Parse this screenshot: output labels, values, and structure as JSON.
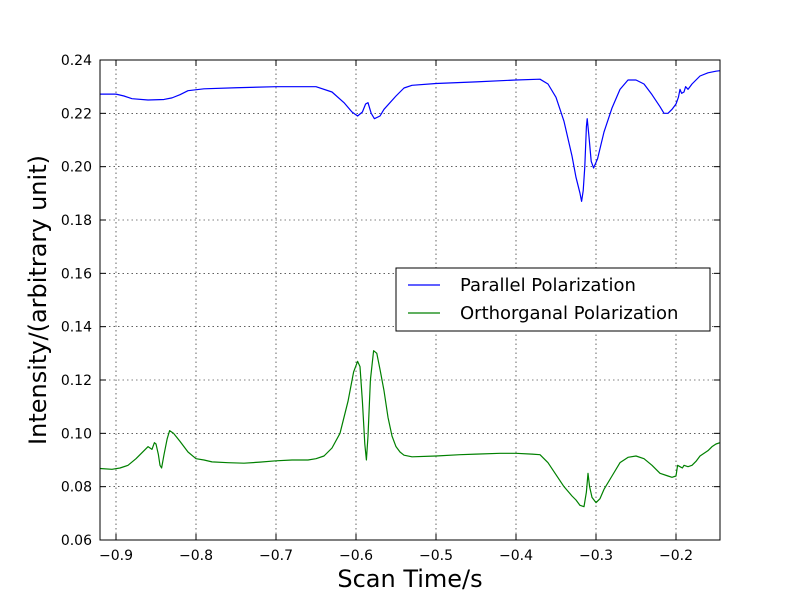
{
  "chart_data": {
    "type": "line",
    "title": "",
    "xlabel": "Scan Time/s",
    "ylabel": "Intensity/(arbitrary unit)",
    "xlim": [
      -0.92,
      -0.145
    ],
    "ylim": [
      0.06,
      0.24
    ],
    "xticks": [
      -0.9,
      -0.8,
      -0.7,
      -0.6,
      -0.5,
      -0.4,
      -0.3,
      -0.2
    ],
    "xtick_labels": [
      "−0.9",
      "−0.8",
      "−0.7",
      "−0.6",
      "−0.5",
      "−0.4",
      "−0.3",
      "−0.2"
    ],
    "yticks": [
      0.06,
      0.08,
      0.1,
      0.12,
      0.14,
      0.16,
      0.18,
      0.2,
      0.22,
      0.24
    ],
    "ytick_labels": [
      "0.06",
      "0.08",
      "0.10",
      "0.12",
      "0.14",
      "0.16",
      "0.18",
      "0.20",
      "0.22",
      "0.24"
    ],
    "grid": true,
    "legend_position": "center-right",
    "series": [
      {
        "name": "Parallel Polarization",
        "color": "#0000ff",
        "points": [
          [
            -0.92,
            0.2272
          ],
          [
            -0.9,
            0.2272
          ],
          [
            -0.89,
            0.2265
          ],
          [
            -0.88,
            0.2255
          ],
          [
            -0.86,
            0.225
          ],
          [
            -0.84,
            0.2252
          ],
          [
            -0.83,
            0.2258
          ],
          [
            -0.82,
            0.227
          ],
          [
            -0.81,
            0.2285
          ],
          [
            -0.79,
            0.2292
          ],
          [
            -0.75,
            0.2296
          ],
          [
            -0.7,
            0.23
          ],
          [
            -0.65,
            0.23
          ],
          [
            -0.63,
            0.228
          ],
          [
            -0.615,
            0.224
          ],
          [
            -0.605,
            0.2205
          ],
          [
            -0.598,
            0.219
          ],
          [
            -0.592,
            0.2205
          ],
          [
            -0.588,
            0.2235
          ],
          [
            -0.585,
            0.224
          ],
          [
            -0.581,
            0.22
          ],
          [
            -0.577,
            0.218
          ],
          [
            -0.57,
            0.219
          ],
          [
            -0.565,
            0.2215
          ],
          [
            -0.55,
            0.2265
          ],
          [
            -0.54,
            0.2295
          ],
          [
            -0.53,
            0.2305
          ],
          [
            -0.5,
            0.2312
          ],
          [
            -0.45,
            0.2318
          ],
          [
            -0.4,
            0.2325
          ],
          [
            -0.37,
            0.2328
          ],
          [
            -0.36,
            0.231
          ],
          [
            -0.35,
            0.226
          ],
          [
            -0.34,
            0.217
          ],
          [
            -0.33,
            0.204
          ],
          [
            -0.325,
            0.196
          ],
          [
            -0.32,
            0.19
          ],
          [
            -0.318,
            0.187
          ],
          [
            -0.316,
            0.191
          ],
          [
            -0.314,
            0.2
          ],
          [
            -0.312,
            0.215
          ],
          [
            -0.311,
            0.218
          ],
          [
            -0.309,
            0.212
          ],
          [
            -0.306,
            0.202
          ],
          [
            -0.303,
            0.1995
          ],
          [
            -0.298,
            0.203
          ],
          [
            -0.29,
            0.213
          ],
          [
            -0.28,
            0.222
          ],
          [
            -0.27,
            0.229
          ],
          [
            -0.26,
            0.2325
          ],
          [
            -0.25,
            0.2325
          ],
          [
            -0.24,
            0.231
          ],
          [
            -0.23,
            0.227
          ],
          [
            -0.22,
            0.2225
          ],
          [
            -0.215,
            0.22
          ],
          [
            -0.21,
            0.22
          ],
          [
            -0.205,
            0.2215
          ],
          [
            -0.2,
            0.2235
          ],
          [
            -0.197,
            0.226
          ],
          [
            -0.195,
            0.229
          ],
          [
            -0.193,
            0.2275
          ],
          [
            -0.19,
            0.228
          ],
          [
            -0.188,
            0.23
          ],
          [
            -0.185,
            0.229
          ],
          [
            -0.18,
            0.231
          ],
          [
            -0.175,
            0.2325
          ],
          [
            -0.17,
            0.234
          ],
          [
            -0.16,
            0.2352
          ],
          [
            -0.15,
            0.2358
          ],
          [
            -0.145,
            0.236
          ]
        ]
      },
      {
        "name": "Orthorganal Polarization",
        "color": "#008000",
        "points": [
          [
            -0.92,
            0.0868
          ],
          [
            -0.905,
            0.0865
          ],
          [
            -0.895,
            0.087
          ],
          [
            -0.885,
            0.088
          ],
          [
            -0.875,
            0.0905
          ],
          [
            -0.865,
            0.0935
          ],
          [
            -0.86,
            0.095
          ],
          [
            -0.855,
            0.094
          ],
          [
            -0.852,
            0.0965
          ],
          [
            -0.85,
            0.096
          ],
          [
            -0.847,
            0.092
          ],
          [
            -0.845,
            0.088
          ],
          [
            -0.843,
            0.087
          ],
          [
            -0.84,
            0.092
          ],
          [
            -0.836,
            0.098
          ],
          [
            -0.833,
            0.101
          ],
          [
            -0.828,
            0.1
          ],
          [
            -0.82,
            0.097
          ],
          [
            -0.81,
            0.093
          ],
          [
            -0.8,
            0.0905
          ],
          [
            -0.79,
            0.09
          ],
          [
            -0.78,
            0.0893
          ],
          [
            -0.76,
            0.089
          ],
          [
            -0.74,
            0.0888
          ],
          [
            -0.72,
            0.0892
          ],
          [
            -0.7,
            0.0897
          ],
          [
            -0.68,
            0.09
          ],
          [
            -0.66,
            0.09
          ],
          [
            -0.65,
            0.0905
          ],
          [
            -0.64,
            0.0915
          ],
          [
            -0.63,
            0.0945
          ],
          [
            -0.62,
            0.1
          ],
          [
            -0.61,
            0.112
          ],
          [
            -0.603,
            0.123
          ],
          [
            -0.598,
            0.127
          ],
          [
            -0.595,
            0.125
          ],
          [
            -0.592,
            0.112
          ],
          [
            -0.589,
            0.096
          ],
          [
            -0.587,
            0.09
          ],
          [
            -0.585,
            0.099
          ],
          [
            -0.582,
            0.12
          ],
          [
            -0.578,
            0.131
          ],
          [
            -0.574,
            0.13
          ],
          [
            -0.57,
            0.124
          ],
          [
            -0.565,
            0.116
          ],
          [
            -0.56,
            0.106
          ],
          [
            -0.555,
            0.099
          ],
          [
            -0.55,
            0.095
          ],
          [
            -0.545,
            0.093
          ],
          [
            -0.54,
            0.0918
          ],
          [
            -0.53,
            0.0912
          ],
          [
            -0.5,
            0.0915
          ],
          [
            -0.47,
            0.092
          ],
          [
            -0.45,
            0.0922
          ],
          [
            -0.42,
            0.0925
          ],
          [
            -0.4,
            0.0925
          ],
          [
            -0.38,
            0.0922
          ],
          [
            -0.37,
            0.092
          ],
          [
            -0.36,
            0.089
          ],
          [
            -0.35,
            0.0845
          ],
          [
            -0.34,
            0.08
          ],
          [
            -0.33,
            0.0765
          ],
          [
            -0.325,
            0.075
          ],
          [
            -0.32,
            0.073
          ],
          [
            -0.315,
            0.0725
          ],
          [
            -0.312,
            0.078
          ],
          [
            -0.31,
            0.085
          ],
          [
            -0.308,
            0.08
          ],
          [
            -0.305,
            0.076
          ],
          [
            -0.3,
            0.074
          ],
          [
            -0.295,
            0.0755
          ],
          [
            -0.29,
            0.079
          ],
          [
            -0.28,
            0.084
          ],
          [
            -0.27,
            0.089
          ],
          [
            -0.26,
            0.091
          ],
          [
            -0.25,
            0.0915
          ],
          [
            -0.24,
            0.0905
          ],
          [
            -0.23,
            0.088
          ],
          [
            -0.22,
            0.085
          ],
          [
            -0.21,
            0.084
          ],
          [
            -0.205,
            0.0835
          ],
          [
            -0.2,
            0.084
          ],
          [
            -0.198,
            0.088
          ],
          [
            -0.195,
            0.0875
          ],
          [
            -0.192,
            0.087
          ],
          [
            -0.19,
            0.088
          ],
          [
            -0.185,
            0.0875
          ],
          [
            -0.18,
            0.088
          ],
          [
            -0.175,
            0.0895
          ],
          [
            -0.17,
            0.0915
          ],
          [
            -0.16,
            0.0935
          ],
          [
            -0.155,
            0.095
          ],
          [
            -0.15,
            0.096
          ],
          [
            -0.145,
            0.0965
          ]
        ]
      }
    ]
  }
}
